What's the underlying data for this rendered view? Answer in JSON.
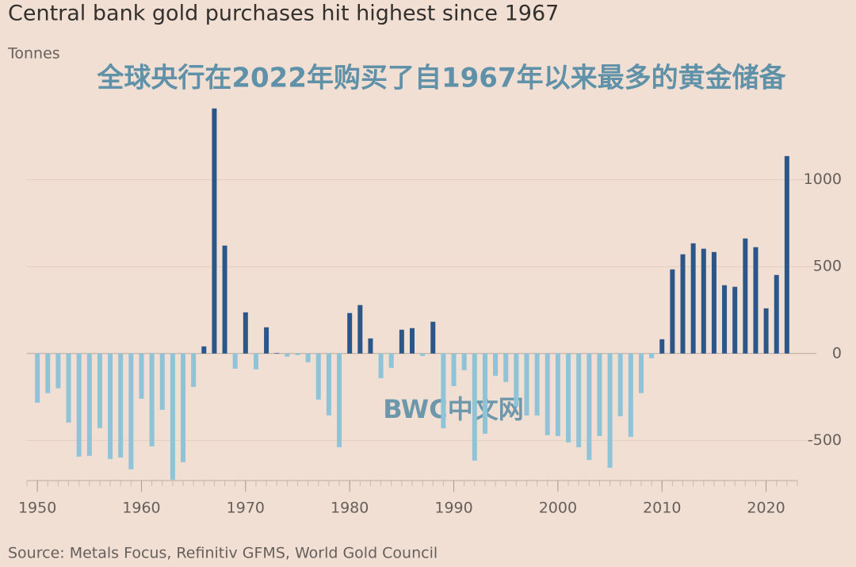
{
  "chart_data": {
    "type": "bar",
    "title": "Central bank gold purchases hit highest since 1967",
    "y_label": "Tonnes",
    "annotations": [
      "全球央行在2022年购买了自1967年以来最多的黄金储备",
      "BWC中文网"
    ],
    "source": "Source: Metals Focus, Refinitiv GFMS, World Gold Council",
    "x": [
      1950,
      1951,
      1952,
      1953,
      1954,
      1955,
      1956,
      1957,
      1958,
      1959,
      1960,
      1961,
      1962,
      1963,
      1964,
      1965,
      1966,
      1967,
      1968,
      1969,
      1970,
      1971,
      1972,
      1973,
      1974,
      1975,
      1976,
      1977,
      1978,
      1979,
      1980,
      1981,
      1982,
      1983,
      1984,
      1985,
      1986,
      1987,
      1988,
      1989,
      1990,
      1991,
      1992,
      1993,
      1994,
      1995,
      1996,
      1997,
      1998,
      1999,
      2000,
      2001,
      2002,
      2003,
      2004,
      2005,
      2006,
      2007,
      2008,
      2009,
      2010,
      2011,
      2012,
      2013,
      2014,
      2015,
      2016,
      2017,
      2018,
      2019,
      2020,
      2021,
      2022
    ],
    "values": [
      -283,
      -228,
      -200,
      -397,
      -593,
      -589,
      -429,
      -607,
      -598,
      -666,
      -260,
      -534,
      -324,
      -726,
      -625,
      -192,
      41,
      1410,
      621,
      -87,
      237,
      -91,
      151,
      3,
      -18,
      -9,
      -50,
      -265,
      -356,
      -539,
      233,
      279,
      87,
      -142,
      -82,
      137,
      146,
      -14,
      183,
      -430,
      -187,
      -96,
      -616,
      -461,
      -128,
      -164,
      -306,
      -356,
      -356,
      -470,
      -475,
      -511,
      -539,
      -612,
      -475,
      -657,
      -361,
      -479,
      -228,
      -27,
      82,
      484,
      571,
      634,
      603,
      584,
      393,
      384,
      662,
      612,
      260,
      452,
      1136
    ],
    "positive_color": "#2b5689",
    "negative_color": "#8ec3d8",
    "xlim": [
      1949,
      2023
    ],
    "xticks": [
      1950,
      1960,
      1970,
      1980,
      1990,
      2000,
      2010,
      2020
    ],
    "ylim": [
      -740,
      1450
    ],
    "yticks": [
      -500,
      0,
      500,
      1000
    ],
    "grid": true
  }
}
